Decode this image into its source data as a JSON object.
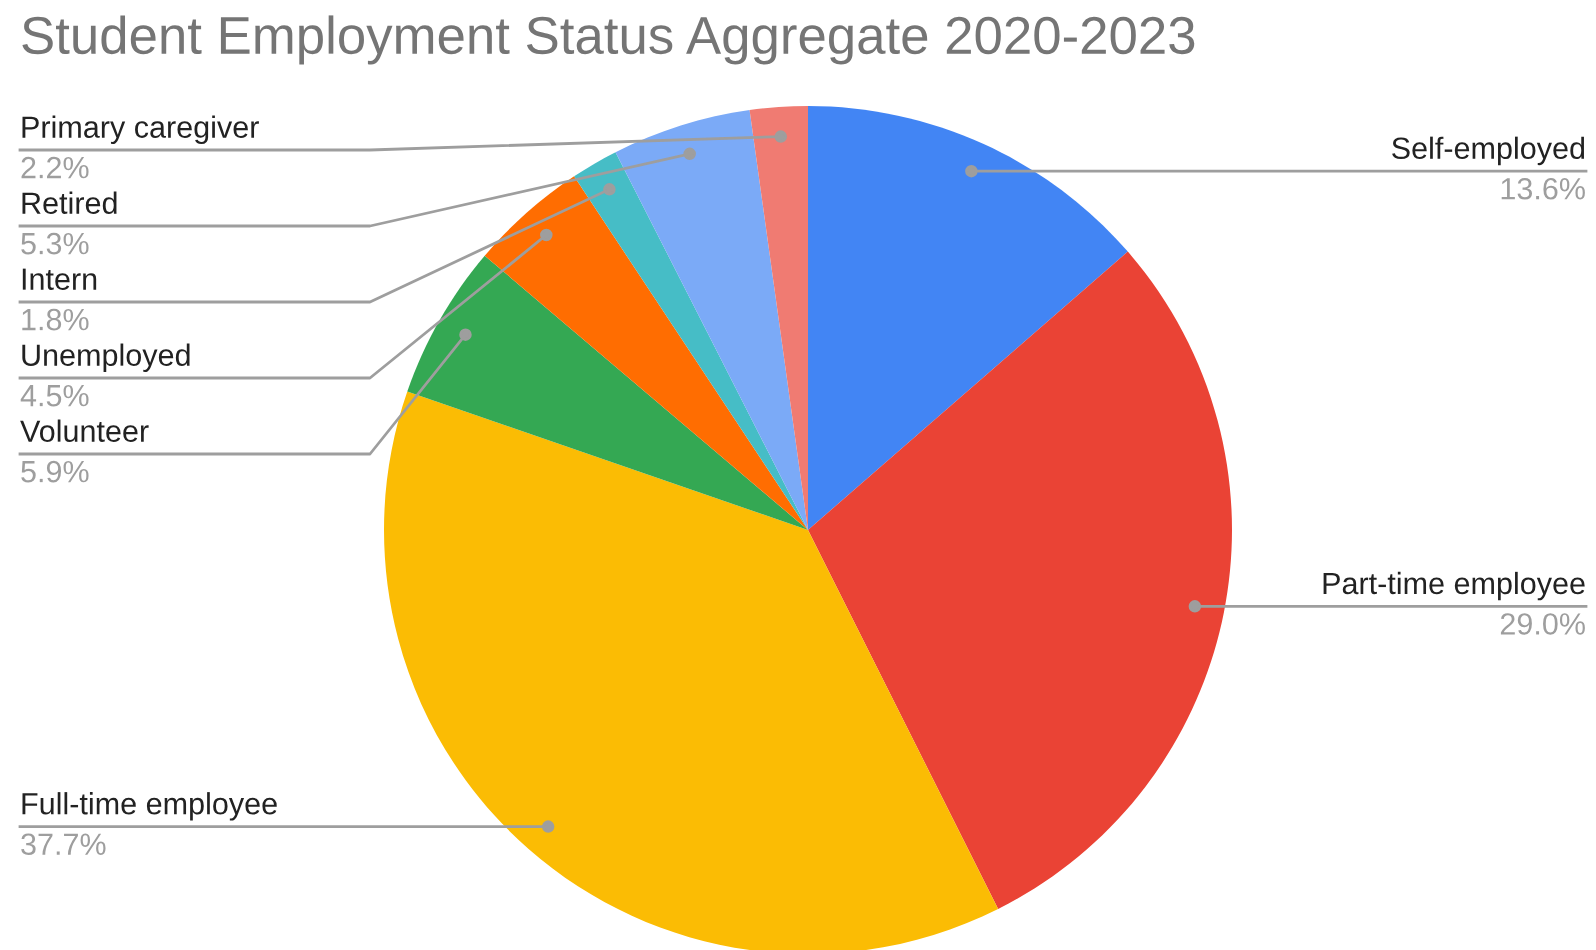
{
  "chart_data": {
    "type": "pie",
    "title": "Student Employment Status Aggregate 2020-2023",
    "categories": [
      "Self-employed",
      "Part-time employee",
      "Full-time employee",
      "Volunteer",
      "Unemployed",
      "Intern",
      "Retired",
      "Primary caregiver"
    ],
    "values": [
      13.6,
      29.0,
      37.7,
      5.9,
      4.5,
      1.8,
      5.3,
      2.2
    ],
    "colors": [
      "#4285f4",
      "#ea4335",
      "#fbbc04",
      "#34a853",
      "#ff6d01",
      "#46bdc6",
      "#7baaf7",
      "#f07b72"
    ],
    "value_labels": [
      "13.6%",
      "29.0%",
      "37.7%",
      "5.9%",
      "4.5%",
      "1.8%",
      "5.3%",
      "2.2%"
    ]
  }
}
